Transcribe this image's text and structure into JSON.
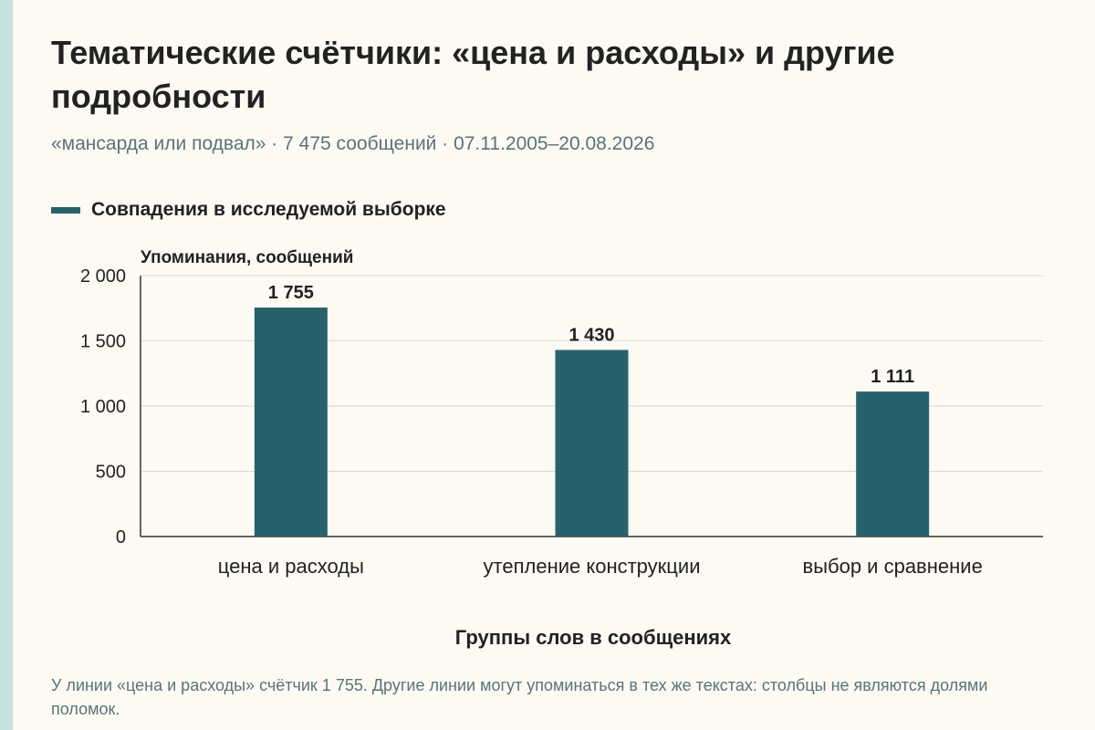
{
  "title": "Тематические счётчики: «цена и расходы» и другие подробности",
  "subtitle": "«мансарда или подвал» · 7 475 сообщений · 07.11.2005–20.08.2026",
  "legend": {
    "label": "Совпадения в исследуемой выборке",
    "color": "#27626b"
  },
  "y_axis_title": "Упоминания, сообщений",
  "x_axis_title": "Группы слов в сообщениях",
  "footnote": "У линии «цена и расходы» счётчик 1 755. Другие линии могут упоминаться в тех же текстах: столбцы не являются долями поломок.",
  "colors": {
    "bar": "#27626b",
    "grid": "#d9d9d4",
    "axis": "#333333",
    "background": "#fcfaf3",
    "accent_strip": "#c7e0e0"
  },
  "chart_data": {
    "type": "bar",
    "title": "Тематические счётчики: «цена и расходы» и другие подробности",
    "subtitle": "«мансарда или подвал» · 7 475 сообщений · 07.11.2005–20.08.2026",
    "xlabel": "Группы слов в сообщениях",
    "ylabel": "Упоминания, сообщений",
    "categories": [
      "цена и расходы",
      "утепление конструкции",
      "выбор и сравнение"
    ],
    "series": [
      {
        "name": "Совпадения в исследуемой выборке",
        "values": [
          1755,
          1430,
          1111
        ],
        "value_labels": [
          "1 755",
          "1 430",
          "1 111"
        ]
      }
    ],
    "ylim": [
      0,
      2000
    ],
    "yticks": [
      0,
      500,
      1000,
      1500,
      2000
    ],
    "ytick_labels": [
      "0",
      "500",
      "1 000",
      "1 500",
      "2 000"
    ],
    "grid": true,
    "legend_position": "top-left"
  }
}
